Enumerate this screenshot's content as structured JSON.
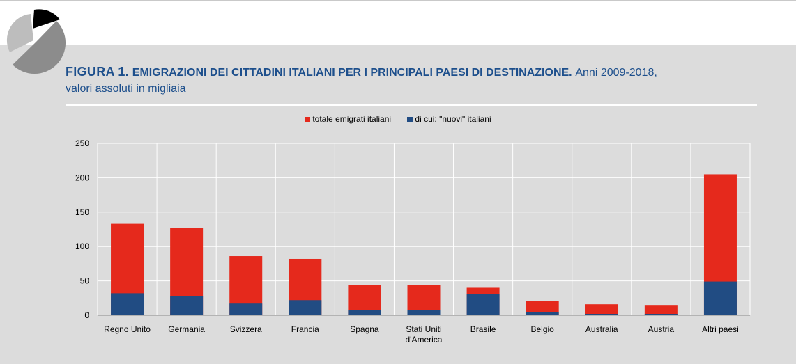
{
  "header": {
    "figure_label": "FIGURA 1.",
    "title_bold": "EMIGRAZIONI DEI CITTADINI ITALIANI PER I PRINCIPALI PAESI DI DESTINAZIONE.",
    "title_rest_line1": "Anni 2009-2018,",
    "title_rest_line2": "valori assoluti in migliaia"
  },
  "colors": {
    "total": "#e5291c",
    "new": "#214c83",
    "panel": "#dcdcdc",
    "title": "#1d4f8c"
  },
  "chart_data": {
    "type": "bar",
    "stacked_overlay": true,
    "categories": [
      "Regno Unito",
      "Germania",
      "Svizzera",
      "Francia",
      "Spagna",
      "Stati Uniti d'America",
      "Brasile",
      "Belgio",
      "Australia",
      "Austria",
      "Altri paesi"
    ],
    "category_lines": [
      [
        "Regno Unito"
      ],
      [
        "Germania"
      ],
      [
        "Svizzera"
      ],
      [
        "Francia"
      ],
      [
        "Spagna"
      ],
      [
        "Stati Uniti",
        "d'America"
      ],
      [
        "Brasile"
      ],
      [
        "Belgio"
      ],
      [
        "Australia"
      ],
      [
        "Austria"
      ],
      [
        "Altri paesi"
      ]
    ],
    "series": [
      {
        "name": "totale emigrati italiani",
        "values": [
          133,
          127,
          86,
          82,
          44,
          44,
          40,
          21,
          16,
          15,
          205
        ]
      },
      {
        "name": "di cui: \"nuovi\" italiani",
        "values": [
          32,
          28,
          17,
          22,
          8,
          8,
          31,
          5,
          2,
          2,
          49
        ]
      }
    ],
    "ylim": [
      0,
      250
    ],
    "yticks": [
      0,
      50,
      100,
      150,
      200,
      250
    ],
    "grid": true,
    "legend_position": "top-center"
  }
}
